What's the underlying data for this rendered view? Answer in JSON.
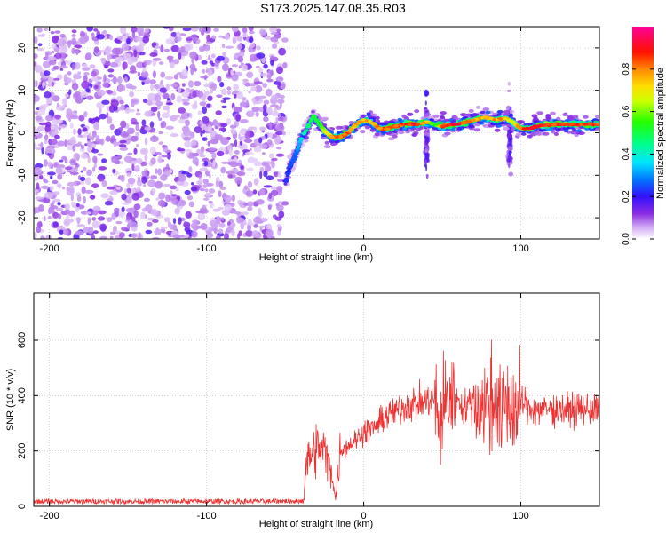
{
  "figure": {
    "title": "S173.2025.147.08.35.R03"
  },
  "chart_data": [
    {
      "type": "heatmap",
      "xlabel": "Height of straight line (km)",
      "ylabel": "Frequency (Hz)",
      "xlim": [
        -210,
        150
      ],
      "ylim": [
        -25,
        25
      ],
      "x_ticks": [
        -200,
        -100,
        0,
        100
      ],
      "y_ticks": [
        -20,
        -10,
        0,
        10,
        20
      ],
      "grid": true,
      "colorbar": {
        "label": "Normalized spectral amplitude",
        "ticks": [
          0.0,
          0.2,
          0.4,
          0.6,
          0.8
        ],
        "range": [
          0,
          1
        ],
        "colormap": "rainbow (white-violet-blue-cyan-green-yellow-red-magenta)"
      },
      "noise_region_x": [
        -210,
        -50
      ],
      "signal_ridge": {
        "x": [
          -50,
          -47,
          -43,
          -40,
          -36,
          -32,
          -28,
          -24,
          -20,
          -15,
          -10,
          -5,
          0,
          5,
          10,
          15,
          20,
          25,
          30,
          35,
          40,
          45,
          50,
          55,
          60,
          65,
          70,
          75,
          80,
          85,
          90,
          95,
          100,
          105,
          110,
          120,
          130,
          140,
          150
        ],
        "y": [
          -12,
          -8,
          -5,
          -1.5,
          1,
          4,
          2,
          0,
          -1,
          -1,
          0,
          2,
          3,
          2.5,
          1,
          1,
          1.5,
          2,
          2,
          2,
          2.5,
          2,
          1.5,
          2,
          2,
          2.5,
          3,
          3.5,
          3.5,
          3,
          3.5,
          2.5,
          1,
          1,
          1.5,
          2,
          2,
          2,
          2
        ],
        "amplitude": [
          0.25,
          0.25,
          0.3,
          0.4,
          0.5,
          0.55,
          0.6,
          0.75,
          0.85,
          0.9,
          0.9,
          0.85,
          0.8,
          0.8,
          0.9,
          0.9,
          0.9,
          0.95,
          0.95,
          0.95,
          0.8,
          0.5,
          0.9,
          0.95,
          0.95,
          0.9,
          0.85,
          0.8,
          0.8,
          0.85,
          0.8,
          0.7,
          0.9,
          0.95,
          0.95,
          0.95,
          0.95,
          0.95,
          0.95
        ]
      },
      "vertical_streaks_x": [
        40,
        93
      ]
    },
    {
      "type": "line",
      "xlabel": "Height of straight line (km)",
      "ylabel": "SNR (10 * v/v)",
      "xlim": [
        -210,
        150
      ],
      "ylim": [
        0,
        770
      ],
      "x_ticks": [
        -200,
        -100,
        0,
        100
      ],
      "y_ticks": [
        0,
        200,
        400,
        600
      ],
      "grid": true,
      "color": "#ee3333",
      "series": [
        {
          "x": [
            -210,
            -180,
            -150,
            -120,
            -90,
            -60,
            -38,
            -37,
            -34,
            -30,
            -25,
            -20,
            -18,
            -15,
            -10,
            -5,
            0,
            5,
            10,
            15,
            20,
            25,
            30,
            35,
            40,
            45,
            48,
            50,
            52,
            55,
            60,
            65,
            70,
            75,
            80,
            85,
            88,
            90,
            95,
            98,
            100,
            105,
            110,
            120,
            130,
            140,
            150
          ],
          "y": [
            18,
            18,
            18,
            18,
            18,
            18,
            20,
            150,
            180,
            210,
            200,
            120,
            20,
            200,
            220,
            240,
            270,
            280,
            300,
            330,
            340,
            360,
            370,
            370,
            380,
            390,
            280,
            320,
            380,
            390,
            380,
            360,
            380,
            360,
            370,
            390,
            300,
            380,
            350,
            330,
            380,
            360,
            350,
            350,
            350,
            350,
            350
          ]
        }
      ]
    }
  ]
}
